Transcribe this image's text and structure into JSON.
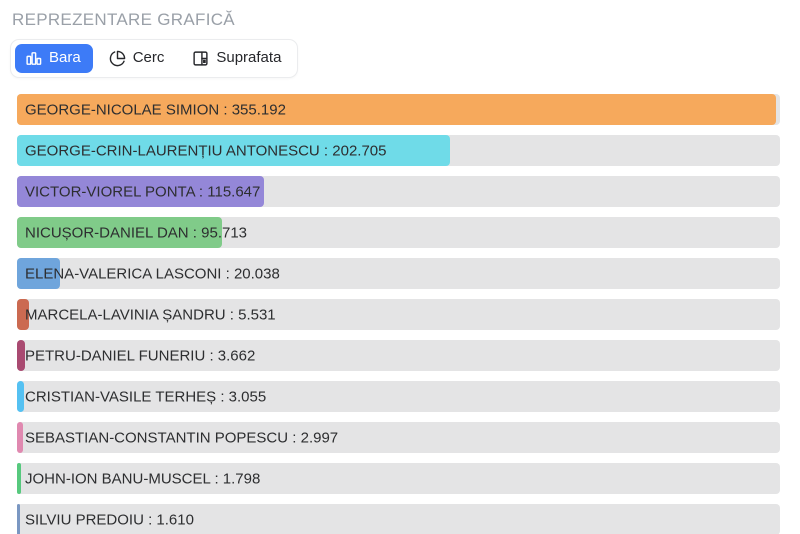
{
  "page": {
    "title": "REPREZENTARE GRAFICĂ"
  },
  "toolbar": {
    "tabs": [
      {
        "label": "Bara",
        "active": true,
        "icon": "bar-chart-icon"
      },
      {
        "label": "Cerc",
        "active": false,
        "icon": "pie-chart-icon"
      },
      {
        "label": "Suprafata",
        "active": false,
        "icon": "treemap-icon"
      }
    ]
  },
  "colors": {
    "active_tab_bg": "#3d7bf7",
    "active_tab_text": "#ffffff",
    "tab_text": "#26272b",
    "title_text": "#9aa0a8",
    "bar_track": "#e4e4e5",
    "bar_label_text": "#2d2e30"
  },
  "chart_data": {
    "type": "bar",
    "orientation": "horizontal",
    "title": "REPREZENTARE GRAFICĂ",
    "grid": false,
    "legend": false,
    "xlim": [
      0,
      357000
    ],
    "scale_max": 357000,
    "categories": [
      "GEORGE-NICOLAE SIMION",
      "GEORGE-CRIN-LAURENȚIU ANTONESCU",
      "VICTOR-VIOREL PONTA",
      "NICUȘOR-DANIEL DAN",
      "ELENA-VALERICA LASCONI",
      "MARCELA-LAVINIA ȘANDRU",
      "PETRU-DANIEL FUNERIU",
      "CRISTIAN-VASILE TERHEȘ",
      "SEBASTIAN-CONSTANTIN POPESCU",
      "JOHN-ION BANU-MUSCEL",
      "SILVIU PREDOIU"
    ],
    "values": [
      355192,
      202705,
      115647,
      95713,
      20038,
      5531,
      3662,
      3055,
      2997,
      1798,
      1610
    ],
    "bars": [
      {
        "name": "GEORGE-NICOLAE SIMION",
        "value": 355192,
        "value_label": "355.192",
        "label": "GEORGE-NICOLAE SIMION : 355.192",
        "color": "#f6a95c"
      },
      {
        "name": "GEORGE-CRIN-LAURENȚIU ANTONESCU",
        "value": 202705,
        "value_label": "202.705",
        "label": "GEORGE-CRIN-LAURENȚIU ANTONESCU : 202.705",
        "color": "#6fdbe8"
      },
      {
        "name": "VICTOR-VIOREL PONTA",
        "value": 115647,
        "value_label": "115.647",
        "label": "VICTOR-VIOREL PONTA : 115.647",
        "color": "#9487d8"
      },
      {
        "name": "NICUȘOR-DANIEL DAN",
        "value": 95713,
        "value_label": "95.713",
        "label": "NICUȘOR-DANIEL DAN : 95.713",
        "color": "#80cb89"
      },
      {
        "name": "ELENA-VALERICA LASCONI",
        "value": 20038,
        "value_label": "20.038",
        "label": "ELENA-VALERICA LASCONI : 20.038",
        "color": "#6fa5dc"
      },
      {
        "name": "MARCELA-LAVINIA ȘANDRU",
        "value": 5531,
        "value_label": "5.531",
        "label": "MARCELA-LAVINIA ȘANDRU : 5.531",
        "color": "#cb6a51"
      },
      {
        "name": "PETRU-DANIEL FUNERIU",
        "value": 3662,
        "value_label": "3.662",
        "label": "PETRU-DANIEL FUNERIU : 3.662",
        "color": "#a94a71"
      },
      {
        "name": "CRISTIAN-VASILE TERHEȘ",
        "value": 3055,
        "value_label": "3.055",
        "label": "CRISTIAN-VASILE TERHEȘ : 3.055",
        "color": "#55c1f2"
      },
      {
        "name": "SEBASTIAN-CONSTANTIN POPESCU",
        "value": 2997,
        "value_label": "2.997",
        "label": "SEBASTIAN-CONSTANTIN POPESCU : 2.997",
        "color": "#e089b0"
      },
      {
        "name": "JOHN-ION BANU-MUSCEL",
        "value": 1798,
        "value_label": "1.798",
        "label": "JOHN-ION BANU-MUSCEL : 1.798",
        "color": "#57c97e"
      },
      {
        "name": "SILVIU PREDOIU",
        "value": 1610,
        "value_label": "1.610",
        "label": "SILVIU PREDOIU : 1.610",
        "color": "#7a97c2"
      }
    ]
  }
}
